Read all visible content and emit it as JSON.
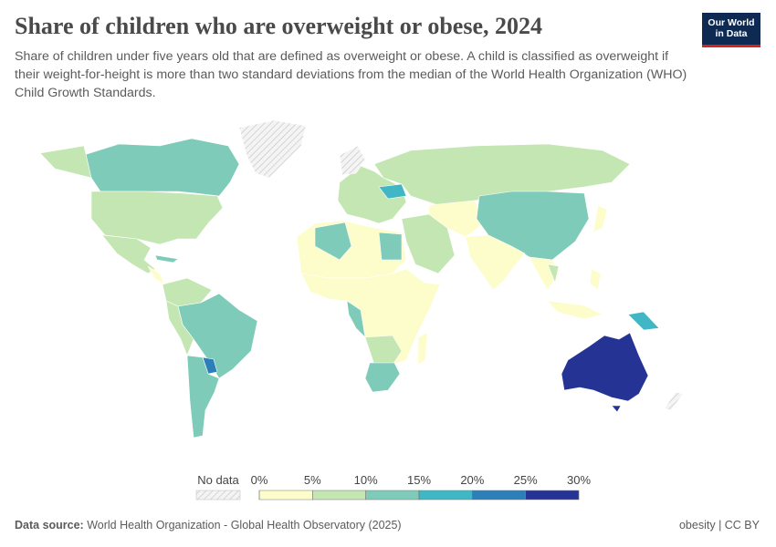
{
  "header": {
    "title": "Share of children who are overweight or obese, 2024",
    "subtitle": "Share of children under five years old that are defined as overweight or obese. A child is classified as overweight if their weight-for-height is more than two standard deviations from the median of the World Health Organization (WHO) Child Growth Standards.",
    "logo": [
      "Our World",
      "in Data"
    ]
  },
  "legend": {
    "no_data": "No data",
    "ticks": [
      {
        "value": 0,
        "label": "0%"
      },
      {
        "value": 5,
        "label": "5%"
      },
      {
        "value": 10,
        "label": "10%"
      },
      {
        "value": 15,
        "label": "15%"
      },
      {
        "value": 20,
        "label": "20%"
      },
      {
        "value": 25,
        "label": "25%"
      },
      {
        "value": 30,
        "label": "30%"
      }
    ],
    "colors": [
      "#fdfdcb",
      "#c4e6b2",
      "#7ecbb9",
      "#41b6c4",
      "#2c7fb8",
      "#253494"
    ]
  },
  "footer": {
    "source_label": "Data source:",
    "source": "World Health Organization - Global Health Observatory (2025)",
    "right": "obesity | CC BY"
  }
}
